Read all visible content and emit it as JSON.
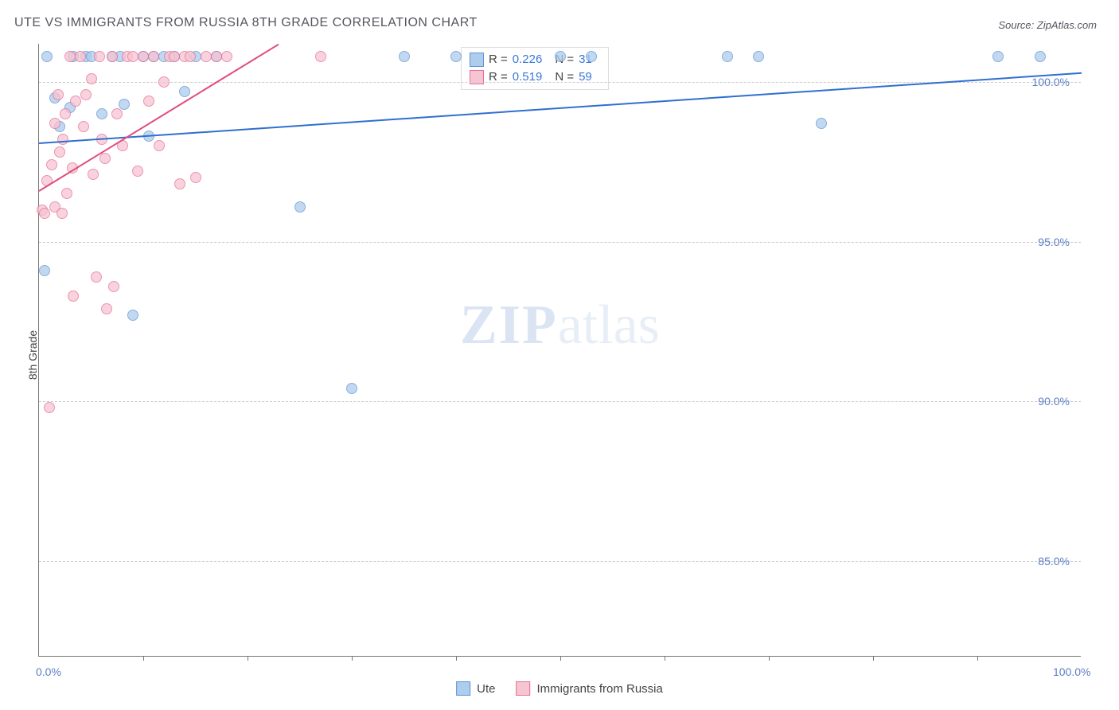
{
  "title": "UTE VS IMMIGRANTS FROM RUSSIA 8TH GRADE CORRELATION CHART",
  "source_label": "Source: ZipAtlas.com",
  "y_axis_label": "8th Grade",
  "watermark": {
    "zip": "ZIP",
    "atlas": "atlas"
  },
  "chart": {
    "type": "scatter",
    "background_color": "#ffffff",
    "grid_color": "#cccccc",
    "xlim": [
      0,
      100
    ],
    "ylim": [
      82,
      101.2
    ],
    "y_ticks": [
      {
        "value": 100.0,
        "label": "100.0%"
      },
      {
        "value": 95.0,
        "label": "95.0%"
      },
      {
        "value": 90.0,
        "label": "90.0%"
      },
      {
        "value": 85.0,
        "label": "85.0%"
      }
    ],
    "x_ticks": [
      10,
      20,
      30,
      40,
      50,
      60,
      70,
      80,
      90
    ],
    "x_labels": [
      {
        "value": 0,
        "label": "0.0%"
      },
      {
        "value": 100,
        "label": "100.0%"
      }
    ],
    "series": [
      {
        "name": "Ute",
        "color_fill": "#aecceb",
        "color_stroke": "#5e95d6",
        "marker_radius": 7,
        "r_value": 0.226,
        "n_value": 31,
        "trend": {
          "x1": 0,
          "y1": 98.1,
          "x2": 100,
          "y2": 100.3,
          "color": "#2f6fd0",
          "width": 2
        },
        "points": [
          {
            "x": 0.5,
            "y": 94.1
          },
          {
            "x": 0.8,
            "y": 100.8
          },
          {
            "x": 1.5,
            "y": 99.5
          },
          {
            "x": 2.0,
            "y": 98.6
          },
          {
            "x": 3.0,
            "y": 99.2
          },
          {
            "x": 3.3,
            "y": 100.8
          },
          {
            "x": 4.5,
            "y": 100.8
          },
          {
            "x": 5.0,
            "y": 100.8
          },
          {
            "x": 6.0,
            "y": 99.0
          },
          {
            "x": 7.0,
            "y": 100.8
          },
          {
            "x": 7.8,
            "y": 100.8
          },
          {
            "x": 8.2,
            "y": 99.3
          },
          {
            "x": 9.0,
            "y": 92.7
          },
          {
            "x": 10.0,
            "y": 100.8
          },
          {
            "x": 10.5,
            "y": 98.3
          },
          {
            "x": 11.0,
            "y": 100.8
          },
          {
            "x": 12.0,
            "y": 100.8
          },
          {
            "x": 13.0,
            "y": 100.8
          },
          {
            "x": 14.0,
            "y": 99.7
          },
          {
            "x": 15.0,
            "y": 100.8
          },
          {
            "x": 17.0,
            "y": 100.8
          },
          {
            "x": 25.0,
            "y": 96.1
          },
          {
            "x": 30.0,
            "y": 90.4
          },
          {
            "x": 35.0,
            "y": 100.8
          },
          {
            "x": 40.0,
            "y": 100.8
          },
          {
            "x": 50.0,
            "y": 100.8
          },
          {
            "x": 53.0,
            "y": 100.8
          },
          {
            "x": 66.0,
            "y": 100.8
          },
          {
            "x": 69.0,
            "y": 100.8
          },
          {
            "x": 75.0,
            "y": 98.7
          },
          {
            "x": 92.0,
            "y": 100.8
          },
          {
            "x": 96.0,
            "y": 100.8
          }
        ]
      },
      {
        "name": "Immigrants from Russia",
        "color_fill": "#f6c5d2",
        "color_stroke": "#e76f95",
        "marker_radius": 7,
        "r_value": 0.519,
        "n_value": 59,
        "trend": {
          "x1": 0,
          "y1": 96.6,
          "x2": 23,
          "y2": 101.2,
          "color": "#e14a7c",
          "width": 2
        },
        "points": [
          {
            "x": 0.3,
            "y": 96.0
          },
          {
            "x": 0.5,
            "y": 95.9
          },
          {
            "x": 0.8,
            "y": 96.9
          },
          {
            "x": 1.0,
            "y": 89.8
          },
          {
            "x": 1.2,
            "y": 97.4
          },
          {
            "x": 1.5,
            "y": 96.1
          },
          {
            "x": 1.5,
            "y": 98.7
          },
          {
            "x": 1.8,
            "y": 99.6
          },
          {
            "x": 2.0,
            "y": 97.8
          },
          {
            "x": 2.2,
            "y": 95.9
          },
          {
            "x": 2.3,
            "y": 98.2
          },
          {
            "x": 2.5,
            "y": 99.0
          },
          {
            "x": 2.7,
            "y": 96.5
          },
          {
            "x": 3.0,
            "y": 100.8
          },
          {
            "x": 3.2,
            "y": 97.3
          },
          {
            "x": 3.3,
            "y": 93.3
          },
          {
            "x": 3.5,
            "y": 99.4
          },
          {
            "x": 4.0,
            "y": 100.8
          },
          {
            "x": 4.3,
            "y": 98.6
          },
          {
            "x": 4.5,
            "y": 99.6
          },
          {
            "x": 5.0,
            "y": 100.1
          },
          {
            "x": 5.2,
            "y": 97.1
          },
          {
            "x": 5.5,
            "y": 93.9
          },
          {
            "x": 5.8,
            "y": 100.8
          },
          {
            "x": 6.0,
            "y": 98.2
          },
          {
            "x": 6.3,
            "y": 97.6
          },
          {
            "x": 6.5,
            "y": 92.9
          },
          {
            "x": 7.0,
            "y": 100.8
          },
          {
            "x": 7.2,
            "y": 93.6
          },
          {
            "x": 7.5,
            "y": 99.0
          },
          {
            "x": 8.0,
            "y": 98.0
          },
          {
            "x": 8.5,
            "y": 100.8
          },
          {
            "x": 9.0,
            "y": 100.8
          },
          {
            "x": 9.5,
            "y": 97.2
          },
          {
            "x": 10.0,
            "y": 100.8
          },
          {
            "x": 10.5,
            "y": 99.4
          },
          {
            "x": 11.0,
            "y": 100.8
          },
          {
            "x": 11.5,
            "y": 98.0
          },
          {
            "x": 12.0,
            "y": 100.0
          },
          {
            "x": 12.5,
            "y": 100.8
          },
          {
            "x": 13.0,
            "y": 100.8
          },
          {
            "x": 13.5,
            "y": 96.8
          },
          {
            "x": 14.0,
            "y": 100.8
          },
          {
            "x": 14.5,
            "y": 100.8
          },
          {
            "x": 15.0,
            "y": 97.0
          },
          {
            "x": 16.0,
            "y": 100.8
          },
          {
            "x": 17.0,
            "y": 100.8
          },
          {
            "x": 18.0,
            "y": 100.8
          },
          {
            "x": 27.0,
            "y": 100.8
          }
        ]
      }
    ]
  },
  "legend_stats": {
    "r_label": "R =",
    "n_label": "N ="
  },
  "bottom_legend": [
    {
      "label": "Ute",
      "fill": "#aecceb",
      "stroke": "#5e95d6"
    },
    {
      "label": "Immigrants from Russia",
      "fill": "#f6c5d2",
      "stroke": "#e76f95"
    }
  ]
}
